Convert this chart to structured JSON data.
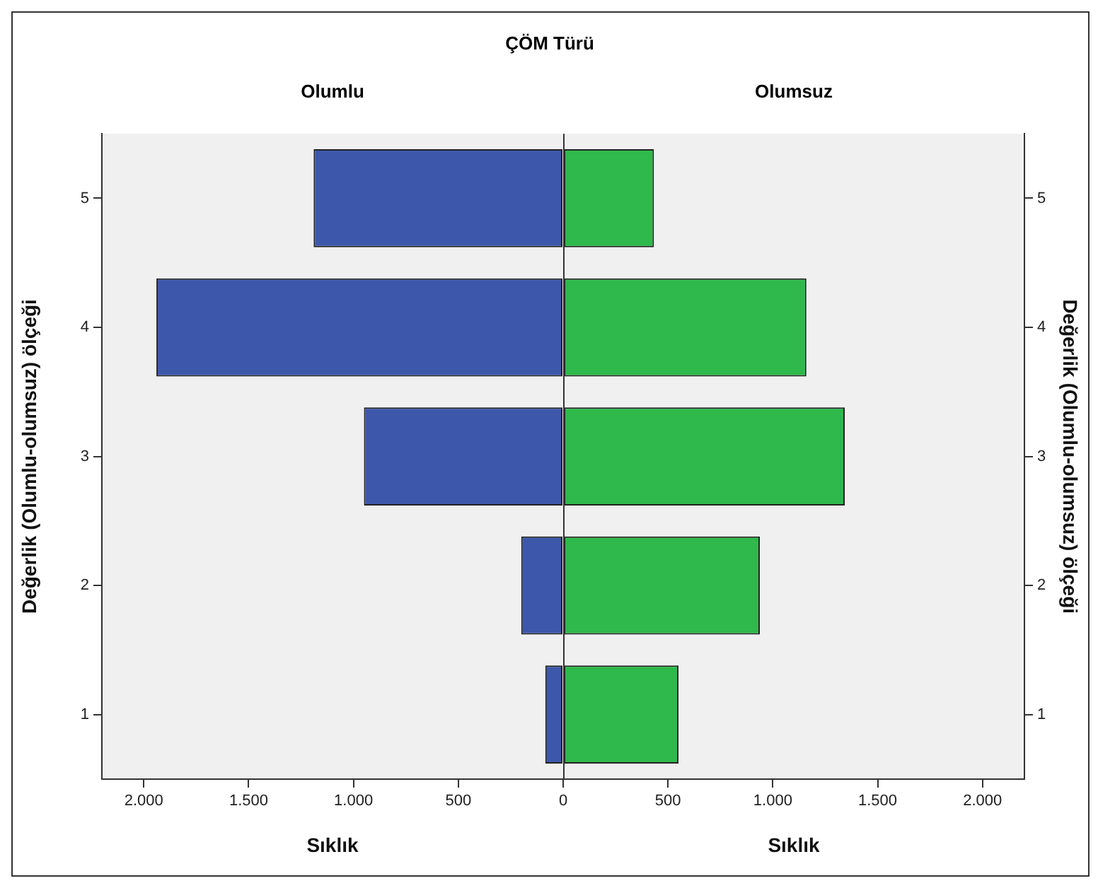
{
  "chart_data": [
    {
      "type": "bar",
      "orientation": "horizontal",
      "title": "ÇÖM Türü",
      "subtitle": "Olumlu",
      "xlabel": "Sıklık",
      "ylabel": "Değerlik (Olumlu-olumsuz) ölçeği",
      "categories": [
        "5",
        "4",
        "3",
        "2",
        "1"
      ],
      "series": [
        {
          "color": "#3d58aa",
          "values": [
            1190,
            1940,
            950,
            200,
            85
          ]
        }
      ],
      "xlim": [
        2200,
        0
      ],
      "xticks": [
        {
          "value": 2000,
          "label": "2.000"
        },
        {
          "value": 1500,
          "label": "1.500"
        },
        {
          "value": 1000,
          "label": "1.000"
        },
        {
          "value": 500,
          "label": "500"
        },
        {
          "value": 0,
          "label": "0"
        }
      ]
    },
    {
      "type": "bar",
      "orientation": "horizontal",
      "subtitle": "Olumsuz",
      "xlabel": "Sıklık",
      "ylabel": "Değerlik (Olumlu-olumsuz) ölçeği",
      "categories": [
        "5",
        "4",
        "3",
        "2",
        "1"
      ],
      "series": [
        {
          "color": "#2fb84b",
          "values": [
            433,
            1160,
            1343,
            938,
            550
          ]
        }
      ],
      "xlim": [
        0,
        2200
      ],
      "xticks": [
        {
          "value": 0,
          "label": null
        },
        {
          "value": 500,
          "label": "500"
        },
        {
          "value": 1000,
          "label": "1.000"
        },
        {
          "value": 1500,
          "label": "1.500"
        },
        {
          "value": 2000,
          "label": "2.000"
        }
      ]
    }
  ]
}
